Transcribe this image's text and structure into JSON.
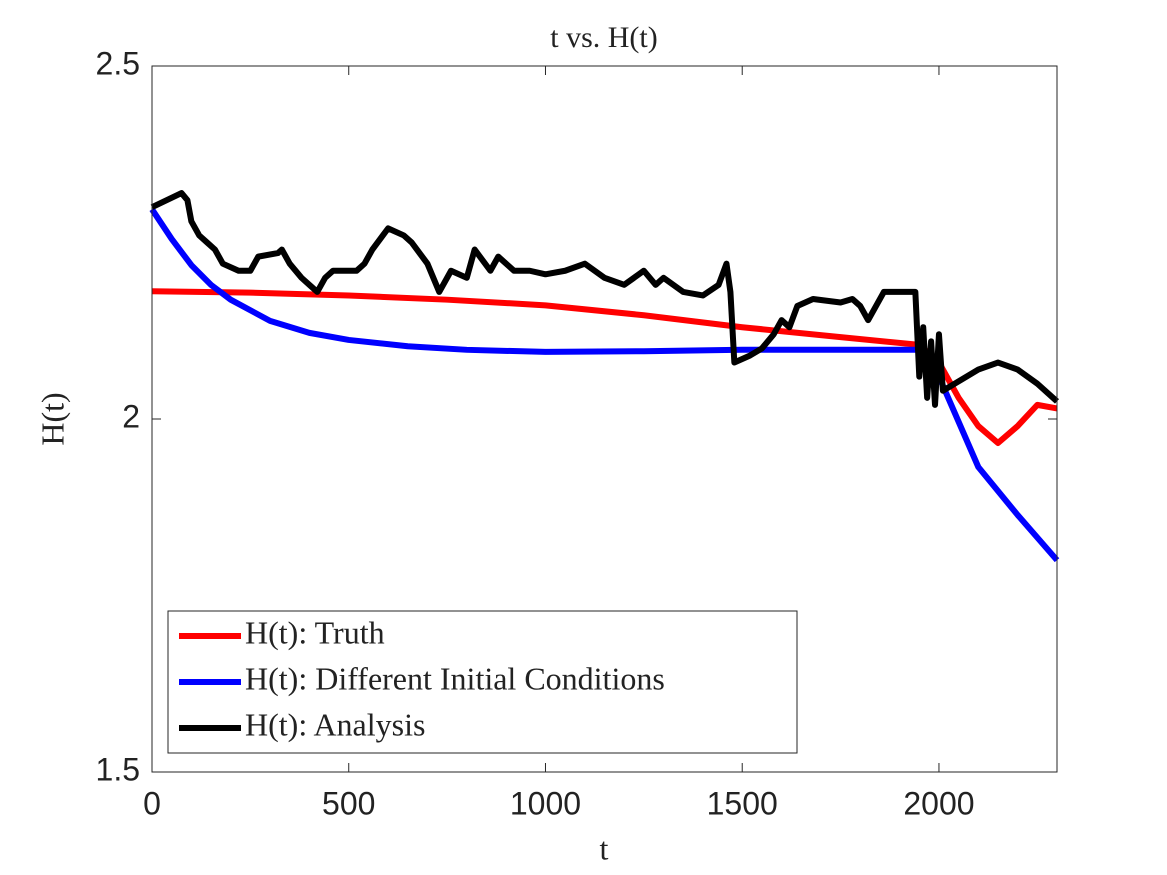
{
  "chart_data": {
    "type": "line",
    "title": "t vs. H(t)",
    "x_label": "t",
    "y_label": "H(t)",
    "xlim": [
      0,
      2300
    ],
    "ylim": [
      1.5,
      2.5
    ],
    "xticks": [
      0,
      500,
      1000,
      1500,
      2000
    ],
    "yticks": [
      1.5,
      2,
      2.5
    ],
    "grid": false,
    "legend": "southwest",
    "series": [
      {
        "name": "H(t): Truth",
        "color": "#ff0000",
        "x": [
          0,
          250,
          500,
          750,
          1000,
          1250,
          1500,
          1750,
          1950,
          2000,
          2050,
          2100,
          2150,
          2200,
          2250,
          2300
        ],
        "values": [
          2.181,
          2.179,
          2.175,
          2.169,
          2.161,
          2.147,
          2.13,
          2.116,
          2.105,
          2.08,
          2.03,
          1.99,
          1.966,
          1.99,
          2.02,
          2.015
        ]
      },
      {
        "name": "H(t): Different Initial Conditions",
        "color": "#0000ff",
        "x": [
          0,
          50,
          100,
          150,
          200,
          300,
          400,
          500,
          650,
          800,
          1000,
          1250,
          1500,
          1750,
          1950,
          2000,
          2100,
          2200,
          2300
        ],
        "values": [
          2.297,
          2.255,
          2.218,
          2.19,
          2.169,
          2.139,
          2.122,
          2.112,
          2.103,
          2.098,
          2.095,
          2.096,
          2.098,
          2.098,
          2.098,
          2.06,
          1.932,
          1.864,
          1.8
        ]
      },
      {
        "name": "H(t): Analysis",
        "color": "#000000",
        "x": [
          0,
          75,
          90,
          100,
          120,
          140,
          160,
          180,
          220,
          250,
          270,
          320,
          330,
          350,
          380,
          400,
          420,
          440,
          460,
          520,
          540,
          560,
          600,
          640,
          660,
          700,
          730,
          760,
          800,
          820,
          860,
          880,
          920,
          960,
          1000,
          1050,
          1100,
          1150,
          1200,
          1250,
          1280,
          1300,
          1350,
          1400,
          1440,
          1460,
          1470,
          1480,
          1520,
          1550,
          1580,
          1600,
          1620,
          1640,
          1680,
          1750,
          1780,
          1800,
          1820,
          1860,
          1940,
          1950,
          1960,
          1970,
          1980,
          1990,
          2000,
          2010,
          2040,
          2100,
          2150,
          2200,
          2250,
          2300
        ],
        "values": [
          2.3,
          2.32,
          2.31,
          2.28,
          2.26,
          2.25,
          2.24,
          2.22,
          2.21,
          2.21,
          2.23,
          2.235,
          2.24,
          2.22,
          2.2,
          2.19,
          2.18,
          2.2,
          2.21,
          2.21,
          2.22,
          2.24,
          2.27,
          2.26,
          2.25,
          2.22,
          2.18,
          2.21,
          2.2,
          2.24,
          2.21,
          2.23,
          2.21,
          2.21,
          2.205,
          2.21,
          2.22,
          2.2,
          2.19,
          2.21,
          2.19,
          2.2,
          2.18,
          2.175,
          2.19,
          2.22,
          2.18,
          2.08,
          2.09,
          2.1,
          2.12,
          2.14,
          2.13,
          2.16,
          2.17,
          2.165,
          2.17,
          2.16,
          2.14,
          2.18,
          2.18,
          2.06,
          2.13,
          2.03,
          2.11,
          2.02,
          2.12,
          2.04,
          2.05,
          2.07,
          2.08,
          2.07,
          2.05,
          2.025
        ]
      }
    ]
  }
}
